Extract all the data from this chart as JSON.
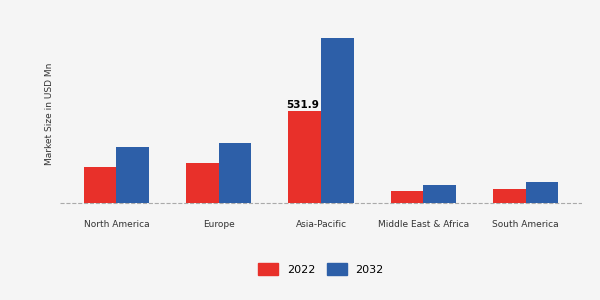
{
  "categories": [
    "North America",
    "Europe",
    "Asia-Pacific",
    "Middle East & Africa",
    "South America"
  ],
  "values_2022": [
    210,
    230,
    531.9,
    68,
    78
  ],
  "values_2032": [
    320,
    345,
    950,
    105,
    122
  ],
  "color_2022": "#e8302a",
  "color_2032": "#2d5fa8",
  "ylabel": "Market Size in USD Mn",
  "annotation_text": "531.9",
  "annotation_category": "Asia-Pacific",
  "background_color": "#f5f5f5",
  "legend_2022": "2022",
  "legend_2032": "2032",
  "bar_width": 0.32,
  "figsize": [
    6.0,
    3.0
  ],
  "dpi": 100
}
